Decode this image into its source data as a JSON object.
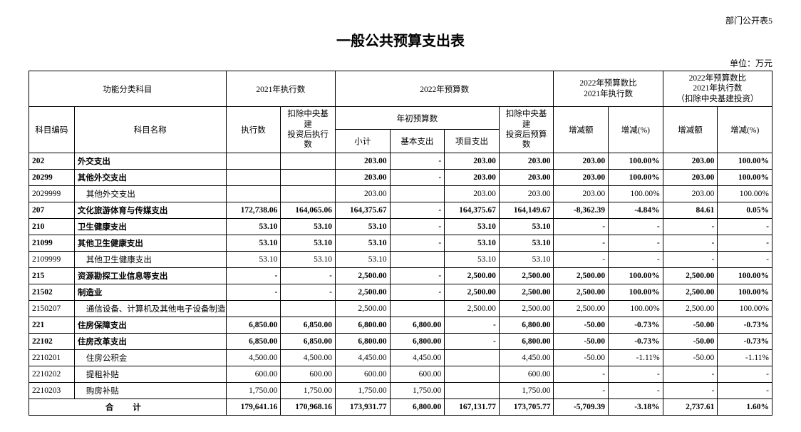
{
  "meta": {
    "top_right": "部门公开表5",
    "title": "一般公共预算支出表",
    "unit": "单位：万元"
  },
  "headers": {
    "func_subject": "功能分类科目",
    "exec_2021": "2021年执行数",
    "budget_2022": "2022年预算数",
    "cmp1": "2022年预算数比\n2021年执行数",
    "cmp2": "2022年预算数比\n2021年执行数\n（扣除中央基建投资）",
    "code": "科目编码",
    "name": "科目名称",
    "exec": "执行数",
    "exec_excl": "扣除中央基建\n投资后执行数",
    "init_budget": "年初预算数",
    "excl_budget": "扣除中央基建\n投资后预算数",
    "subtotal": "小计",
    "basic": "基本支出",
    "project": "项目支出",
    "inc_amt": "增减额",
    "inc_pct": "增减(%)"
  },
  "rows": [
    {
      "bold": true,
      "code": "202",
      "name": "外交支出",
      "exec": "",
      "exec_excl": "",
      "sub": "203.00",
      "basic": "-",
      "proj": "203.00",
      "excl": "203.00",
      "d1a": "203.00",
      "d1p": "100.00%",
      "d2a": "203.00",
      "d2p": "100.00%"
    },
    {
      "bold": true,
      "code": "20299",
      "name": "其他外交支出",
      "exec": "",
      "exec_excl": "",
      "sub": "203.00",
      "basic": "-",
      "proj": "203.00",
      "excl": "203.00",
      "d1a": "203.00",
      "d1p": "100.00%",
      "d2a": "203.00",
      "d2p": "100.00%"
    },
    {
      "bold": false,
      "indent": 1,
      "code": "2029999",
      "name": "其他外交支出",
      "exec": "",
      "exec_excl": "",
      "sub": "203.00",
      "basic": "",
      "proj": "203.00",
      "excl": "203.00",
      "d1a": "203.00",
      "d1p": "100.00%",
      "d2a": "203.00",
      "d2p": "100.00%"
    },
    {
      "bold": true,
      "code": "207",
      "name": "文化旅游体育与传媒支出",
      "exec": "172,738.06",
      "exec_excl": "164,065.06",
      "sub": "164,375.67",
      "basic": "-",
      "proj": "164,375.67",
      "excl": "164,149.67",
      "d1a": "-8,362.39",
      "d1p": "-4.84%",
      "d2a": "84.61",
      "d2p": "0.05%"
    },
    {
      "bold": true,
      "code": "210",
      "name": "卫生健康支出",
      "exec": "53.10",
      "exec_excl": "53.10",
      "sub": "53.10",
      "basic": "-",
      "proj": "53.10",
      "excl": "53.10",
      "d1a": "-",
      "d1p": "-",
      "d2a": "-",
      "d2p": "-"
    },
    {
      "bold": true,
      "code": "21099",
      "name": "其他卫生健康支出",
      "exec": "53.10",
      "exec_excl": "53.10",
      "sub": "53.10",
      "basic": "-",
      "proj": "53.10",
      "excl": "53.10",
      "d1a": "-",
      "d1p": "-",
      "d2a": "-",
      "d2p": "-"
    },
    {
      "bold": false,
      "indent": 1,
      "code": "2109999",
      "name": "其他卫生健康支出",
      "exec": "53.10",
      "exec_excl": "53.10",
      "sub": "53.10",
      "basic": "",
      "proj": "53.10",
      "excl": "53.10",
      "d1a": "-",
      "d1p": "-",
      "d2a": "-",
      "d2p": "-"
    },
    {
      "bold": true,
      "code": "215",
      "name": "资源勘探工业信息等支出",
      "exec": "-",
      "exec_excl": "-",
      "sub": "2,500.00",
      "basic": "-",
      "proj": "2,500.00",
      "excl": "2,500.00",
      "d1a": "2,500.00",
      "d1p": "100.00%",
      "d2a": "2,500.00",
      "d2p": "100.00%"
    },
    {
      "bold": true,
      "code": "21502",
      "name": "制造业",
      "exec": "-",
      "exec_excl": "-",
      "sub": "2,500.00",
      "basic": "-",
      "proj": "2,500.00",
      "excl": "2,500.00",
      "d1a": "2,500.00",
      "d1p": "100.00%",
      "d2a": "2,500.00",
      "d2p": "100.00%"
    },
    {
      "bold": false,
      "indent": 1,
      "code": "2150207",
      "name": "通信设备、计算机及其他电子设备制造业",
      "exec": "",
      "exec_excl": "",
      "sub": "2,500.00",
      "basic": "",
      "proj": "2,500.00",
      "excl": "2,500.00",
      "d1a": "2,500.00",
      "d1p": "100.00%",
      "d2a": "2,500.00",
      "d2p": "100.00%"
    },
    {
      "bold": true,
      "code": "221",
      "name": "住房保障支出",
      "exec": "6,850.00",
      "exec_excl": "6,850.00",
      "sub": "6,800.00",
      "basic": "6,800.00",
      "proj": "-",
      "excl": "6,800.00",
      "d1a": "-50.00",
      "d1p": "-0.73%",
      "d2a": "-50.00",
      "d2p": "-0.73%"
    },
    {
      "bold": true,
      "code": "22102",
      "name": "住房改革支出",
      "exec": "6,850.00",
      "exec_excl": "6,850.00",
      "sub": "6,800.00",
      "basic": "6,800.00",
      "proj": "-",
      "excl": "6,800.00",
      "d1a": "-50.00",
      "d1p": "-0.73%",
      "d2a": "-50.00",
      "d2p": "-0.73%"
    },
    {
      "bold": false,
      "indent": 1,
      "code": "2210201",
      "name": "住房公积金",
      "exec": "4,500.00",
      "exec_excl": "4,500.00",
      "sub": "4,450.00",
      "basic": "4,450.00",
      "proj": "",
      "excl": "4,450.00",
      "d1a": "-50.00",
      "d1p": "-1.11%",
      "d2a": "-50.00",
      "d2p": "-1.11%"
    },
    {
      "bold": false,
      "indent": 1,
      "code": "2210202",
      "name": "提租补贴",
      "exec": "600.00",
      "exec_excl": "600.00",
      "sub": "600.00",
      "basic": "600.00",
      "proj": "",
      "excl": "600.00",
      "d1a": "-",
      "d1p": "-",
      "d2a": "-",
      "d2p": "-"
    },
    {
      "bold": false,
      "indent": 1,
      "code": "2210203",
      "name": "购房补贴",
      "exec": "1,750.00",
      "exec_excl": "1,750.00",
      "sub": "1,750.00",
      "basic": "1,750.00",
      "proj": "",
      "excl": "1,750.00",
      "d1a": "-",
      "d1p": "-",
      "d2a": "-",
      "d2p": "-"
    }
  ],
  "total": {
    "label": "合 计",
    "exec": "179,641.16",
    "exec_excl": "170,968.16",
    "sub": "173,931.77",
    "basic": "6,800.00",
    "proj": "167,131.77",
    "excl": "173,705.77",
    "d1a": "-5,709.39",
    "d1p": "-3.18%",
    "d2a": "2,737.61",
    "d2p": "1.60%"
  }
}
